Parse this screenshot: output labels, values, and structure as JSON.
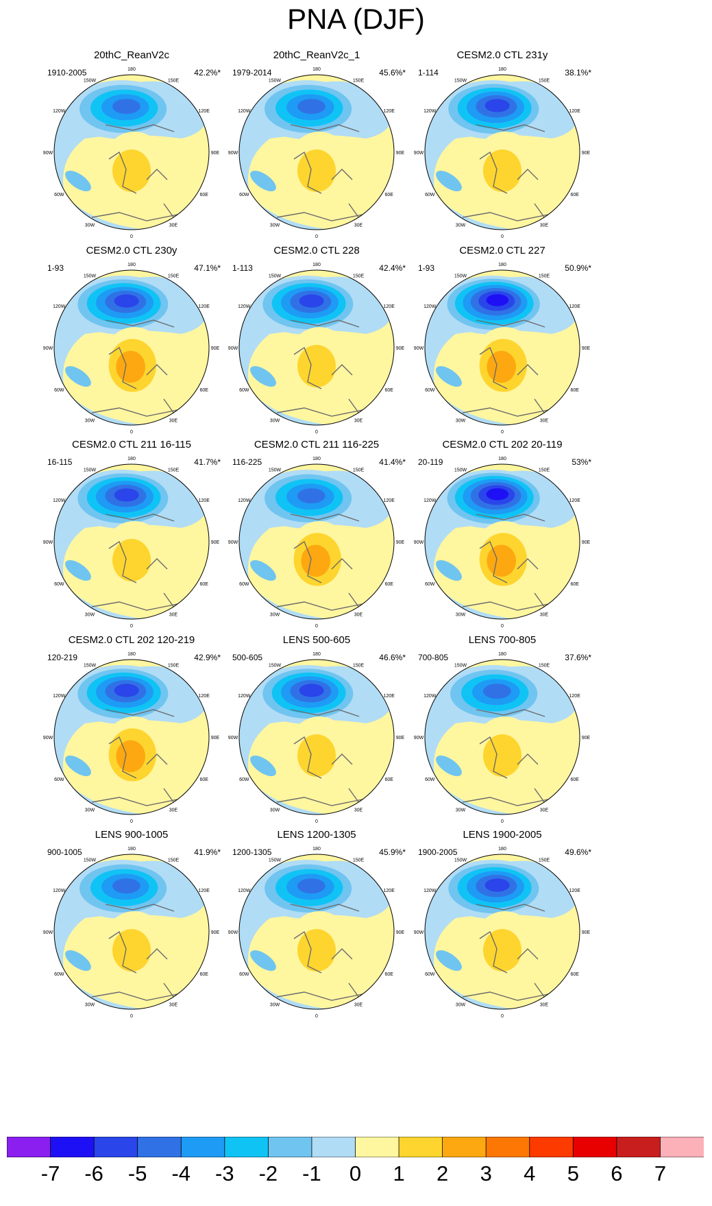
{
  "title": "PNA (DJF)",
  "lon_labels": [
    "180",
    "150E",
    "120E",
    "90E",
    "60E",
    "30E",
    "0",
    "30W",
    "60W",
    "90W",
    "120W",
    "150W"
  ],
  "colorbar": {
    "ticks": [
      "-7",
      "-6",
      "-5",
      "-4",
      "-3",
      "-2",
      "-1",
      "0",
      "1",
      "2",
      "3",
      "4",
      "5",
      "6",
      "7"
    ],
    "colors": [
      "#8a1ff0",
      "#1e10f5",
      "#2a45ea",
      "#3072e6",
      "#1e9bf5",
      "#10c3f5",
      "#70c4f0",
      "#b0dcf5",
      "#fff6a0",
      "#fed52e",
      "#fda810",
      "#fd7705",
      "#fd3a00",
      "#e80000",
      "#c81e1e",
      "#fcb0b8"
    ]
  },
  "chart_data": [
    {
      "type": "heatmap",
      "title": "20thC_ReanV2c",
      "period": "1910-2005",
      "percent": "42.2%*",
      "neg_max": -5,
      "pos_max": 2
    },
    {
      "type": "heatmap",
      "title": "20thC_ReanV2c_1",
      "period": "1979-2014",
      "percent": "45.6%*",
      "neg_max": -5,
      "pos_max": 2
    },
    {
      "type": "heatmap",
      "title": "CESM2.0 CTL 231y",
      "period": "1-114",
      "percent": "38.1%*",
      "neg_max": -6,
      "pos_max": 2
    },
    {
      "type": "heatmap",
      "title": "CESM2.0 CTL 230y",
      "period": "1-93",
      "percent": "47.1%*",
      "neg_max": -6,
      "pos_max": 3
    },
    {
      "type": "heatmap",
      "title": "CESM2.0 CTL 228",
      "period": "1-113",
      "percent": "42.4%*",
      "neg_max": -6,
      "pos_max": 2
    },
    {
      "type": "heatmap",
      "title": "CESM2.0 CTL 227",
      "period": "1-93",
      "percent": "50.9%*",
      "neg_max": -7,
      "pos_max": 3
    },
    {
      "type": "heatmap",
      "title": "CESM2.0 CTL 211 16-115",
      "period": "16-115",
      "percent": "41.7%*",
      "neg_max": -6,
      "pos_max": 2
    },
    {
      "type": "heatmap",
      "title": "CESM2.0 CTL 211 116-225",
      "period": "116-225",
      "percent": "41.4%*",
      "neg_max": -5,
      "pos_max": 3
    },
    {
      "type": "heatmap",
      "title": "CESM2.0 CTL 202 20-119",
      "period": "20-119",
      "percent": "53%*",
      "neg_max": -7,
      "pos_max": 3
    },
    {
      "type": "heatmap",
      "title": "CESM2.0 CTL 202 120-219",
      "period": "120-219",
      "percent": "42.9%*",
      "neg_max": -6,
      "pos_max": 3
    },
    {
      "type": "heatmap",
      "title": "LENS 500-605",
      "period": "500-605",
      "percent": "46.6%*",
      "neg_max": -6,
      "pos_max": 2
    },
    {
      "type": "heatmap",
      "title": "LENS 700-805",
      "period": "700-805",
      "percent": "37.6%*",
      "neg_max": -5,
      "pos_max": 2
    },
    {
      "type": "heatmap",
      "title": "LENS 900-1005",
      "period": "900-1005",
      "percent": "41.9%*",
      "neg_max": -5,
      "pos_max": 2
    },
    {
      "type": "heatmap",
      "title": "LENS 1200-1305",
      "period": "1200-1305",
      "percent": "45.9%*",
      "neg_max": -5,
      "pos_max": 2
    },
    {
      "type": "heatmap",
      "title": "LENS 1900-2005",
      "period": "1900-2005",
      "percent": "49.6%*",
      "neg_max": -6,
      "pos_max": 2
    }
  ]
}
